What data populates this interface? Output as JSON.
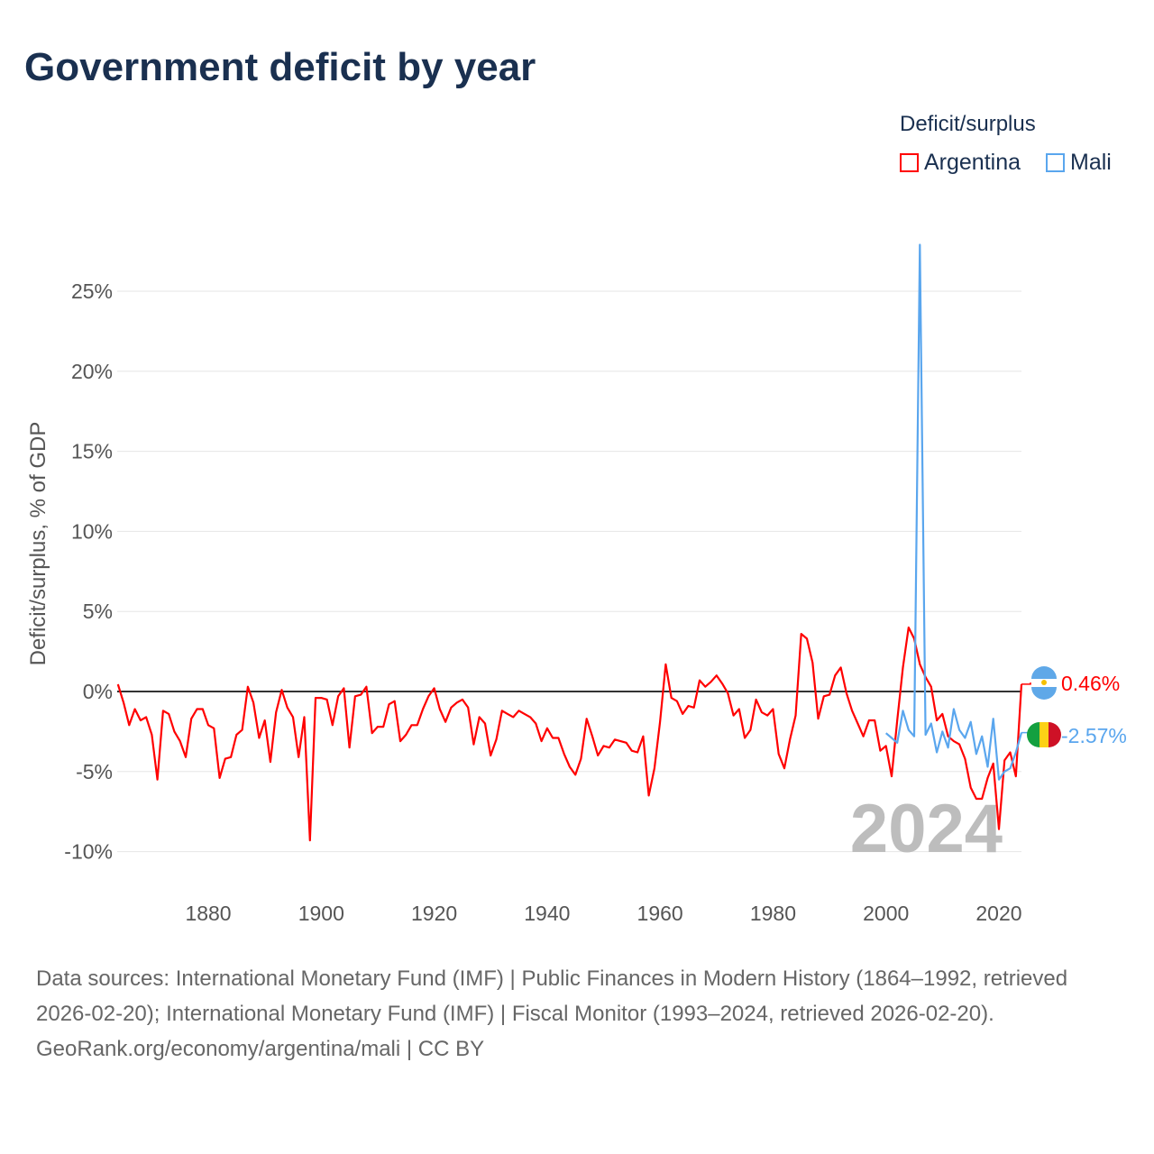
{
  "title": "Government deficit by year",
  "legend": {
    "title": "Deficit/surplus",
    "items": [
      {
        "name": "Argentina",
        "color": "#ff0000"
      },
      {
        "name": "Mali",
        "color": "#5aa6ee"
      }
    ]
  },
  "footer": {
    "sources": "Data sources: International Monetary Fund (IMF) | Public Finances in Modern History (1864–1992, retrieved 2026-02-20); International Monetary Fund (IMF) | Fiscal Monitor (1993–2024, retrieved 2026-02-20).",
    "credit": "GeoRank.org/economy/argentina/mali | CC BY"
  },
  "chart_data": {
    "type": "line",
    "title": "Government deficit by year",
    "xlabel": "",
    "ylabel": "Deficit/surplus, % of GDP",
    "xlim": [
      1864,
      2024
    ],
    "ylim": [
      -12,
      28
    ],
    "xticks": [
      1880,
      1900,
      1920,
      1940,
      1960,
      1980,
      2000,
      2020
    ],
    "yticks": [
      {
        "v": -10,
        "label": "-10%"
      },
      {
        "v": -5,
        "label": "-5%"
      },
      {
        "v": 0,
        "label": "0%"
      },
      {
        "v": 5,
        "label": "5%"
      },
      {
        "v": 10,
        "label": "10%"
      },
      {
        "v": 15,
        "label": "15%"
      },
      {
        "v": 20,
        "label": "20%"
      },
      {
        "v": 25,
        "label": "25%"
      }
    ],
    "year_label": "2024",
    "series": [
      {
        "name": "Argentina",
        "color": "#ff0000",
        "start": 1864,
        "end_label": "0.46%",
        "values": [
          0.45,
          -0.7,
          -2.1,
          -1.1,
          -1.8,
          -1.6,
          -2.7,
          -5.5,
          -1.2,
          -1.4,
          -2.5,
          -3.1,
          -4.1,
          -1.7,
          -1.1,
          -1.1,
          -2.1,
          -2.3,
          -5.4,
          -4.2,
          -4.1,
          -2.7,
          -2.4,
          0.3,
          -0.7,
          -2.9,
          -1.8,
          -4.4,
          -1.3,
          0.1,
          -1.0,
          -1.6,
          -4.1,
          -1.6,
          -9.3,
          -0.4,
          -0.4,
          -0.5,
          -2.1,
          -0.3,
          0.2,
          -3.5,
          -0.3,
          -0.2,
          0.3,
          -2.6,
          -2.2,
          -2.2,
          -0.8,
          -0.6,
          -3.1,
          -2.7,
          -2.1,
          -2.1,
          -1.1,
          -0.3,
          0.2,
          -1.1,
          -1.9,
          -1.0,
          -0.7,
          -0.5,
          -1.0,
          -3.3,
          -1.6,
          -2.0,
          -4.0,
          -3.0,
          -1.2,
          -1.4,
          -1.6,
          -1.2,
          -1.4,
          -1.6,
          -2.0,
          -3.1,
          -2.3,
          -2.9,
          -2.9,
          -3.9,
          -4.7,
          -5.2,
          -4.2,
          -1.7,
          -2.8,
          -4.0,
          -3.4,
          -3.5,
          -3.0,
          -3.1,
          -3.2,
          -3.7,
          -3.8,
          -2.8,
          -6.5,
          -4.8,
          -1.9,
          1.7,
          -0.4,
          -0.6,
          -1.4,
          -0.9,
          -1.0,
          0.7,
          0.3,
          0.6,
          1.0,
          0.5,
          -0.1,
          -1.5,
          -1.1,
          -2.9,
          -2.4,
          -0.5,
          -1.3,
          -1.5,
          -1.1,
          -3.9,
          -4.8,
          -3.0,
          -1.5,
          3.6,
          3.3,
          1.8,
          -1.7,
          -0.3,
          -0.2,
          1.0,
          1.5,
          -0.1,
          -1.2,
          -2.0,
          -2.8,
          -1.8,
          -1.8,
          -3.7,
          -3.4,
          -5.3,
          -1.8,
          1.5,
          4.0,
          3.3,
          1.7,
          0.9,
          0.3,
          -1.8,
          -1.4,
          -2.8,
          -3.1,
          -3.3,
          -4.2,
          -6.0,
          -6.7,
          -6.7,
          -5.4,
          -4.5,
          -8.6,
          -4.3,
          -3.8,
          -5.3,
          0.46
        ]
      },
      {
        "name": "Mali",
        "color": "#5aa6ee",
        "start": 2000,
        "end_label": "-2.57%",
        "values": [
          -2.6,
          -2.9,
          -3.2,
          -1.2,
          -2.4,
          -2.8,
          27.9,
          -2.7,
          -2.0,
          -3.8,
          -2.5,
          -3.5,
          -1.1,
          -2.4,
          -2.9,
          -1.9,
          -3.9,
          -2.8,
          -4.7,
          -1.7,
          -5.5,
          -5.0,
          -4.8,
          -3.8,
          -2.57
        ]
      }
    ]
  }
}
